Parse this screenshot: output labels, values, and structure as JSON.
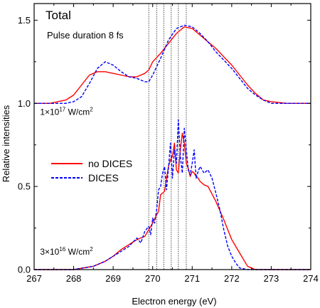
{
  "chart_data": {
    "type": "line",
    "panel_title": "Total",
    "subtitle": "Pulse duration 8 fs",
    "xlabel": "Electron energy (eV)",
    "ylabel": "Relative intensities",
    "xlim": [
      267,
      274
    ],
    "ylim": [
      0,
      1.6
    ],
    "x_ticks": [
      267,
      268,
      269,
      270,
      271,
      272,
      273,
      274
    ],
    "y_ticks": [
      0.0,
      0.5,
      1.0,
      1.5
    ],
    "x_tick_labels": [
      "267",
      "268",
      "269",
      "270",
      "271",
      "272",
      "273",
      "274"
    ],
    "y_tick_labels": [
      "0.0",
      "0.5",
      "1.0",
      "1.5"
    ],
    "grid": false,
    "legend_position": "left-middle",
    "intensity_labels": [
      {
        "id": "upper",
        "coef": "1×10",
        "exp": "17",
        "unit": " W/cm",
        "unit_exp": "2",
        "x": 267.15,
        "y": 0.93
      },
      {
        "id": "lower",
        "coef": "3×10",
        "exp": "16",
        "unit": " W/cm",
        "unit_exp": "2",
        "x": 267.15,
        "y": 0.09
      }
    ],
    "vlines": [
      269.9,
      270.1,
      270.28,
      270.47,
      270.65,
      270.85
    ],
    "series": [
      {
        "name": "no DICES",
        "color": "#ff0000",
        "dash": "solid",
        "x": [
          267.0,
          267.4,
          267.8,
          268.0,
          268.2,
          268.4,
          268.6,
          268.8,
          269.0,
          269.2,
          269.4,
          269.6,
          269.8,
          269.9,
          270.0,
          270.2,
          270.4,
          270.6,
          270.8,
          271.0,
          271.2,
          271.4,
          271.6,
          271.8,
          272.0,
          272.2,
          272.4,
          272.6,
          272.8,
          273.0,
          273.4,
          274.0
        ],
        "y": [
          1.0,
          1.0,
          1.02,
          1.05,
          1.11,
          1.17,
          1.19,
          1.19,
          1.18,
          1.17,
          1.16,
          1.16,
          1.18,
          1.2,
          1.25,
          1.3,
          1.36,
          1.42,
          1.46,
          1.45,
          1.41,
          1.37,
          1.33,
          1.28,
          1.23,
          1.17,
          1.11,
          1.06,
          1.02,
          1.01,
          1.0,
          1.0
        ]
      },
      {
        "name": "DICES",
        "color": "#0000ff",
        "dash": "4,2",
        "x": [
          267.0,
          267.8,
          268.0,
          268.2,
          268.4,
          268.6,
          268.8,
          269.0,
          269.2,
          269.4,
          269.6,
          269.8,
          269.9,
          270.0,
          270.2,
          270.4,
          270.6,
          270.8,
          271.0,
          271.2,
          271.4,
          271.6,
          271.8,
          272.0,
          272.2,
          272.4,
          272.6,
          272.8,
          273.0,
          273.4,
          274.0
        ],
        "y": [
          1.0,
          1.0,
          1.01,
          1.04,
          1.12,
          1.21,
          1.25,
          1.23,
          1.19,
          1.16,
          1.15,
          1.13,
          1.13,
          1.17,
          1.27,
          1.38,
          1.45,
          1.47,
          1.46,
          1.42,
          1.37,
          1.31,
          1.26,
          1.21,
          1.15,
          1.09,
          1.05,
          1.02,
          1.0,
          1.0,
          1.0
        ]
      },
      {
        "name": "no DICES (3×10^16)",
        "color": "#ff0000",
        "dash": "solid",
        "x": [
          267.0,
          268.0,
          268.5,
          268.8,
          269.0,
          269.2,
          269.4,
          269.6,
          269.8,
          269.9,
          270.0,
          270.1,
          270.15,
          270.2,
          270.3,
          270.35,
          270.4,
          270.45,
          270.5,
          270.55,
          270.6,
          270.65,
          270.7,
          270.75,
          270.8,
          270.85,
          270.9,
          270.95,
          271.0,
          271.05,
          271.1,
          271.15,
          271.2,
          271.3,
          271.4,
          271.6,
          271.8,
          272.0,
          272.2,
          272.4,
          272.6,
          273.0,
          274.0
        ],
        "y": [
          0.0,
          0.0,
          0.02,
          0.05,
          0.08,
          0.12,
          0.15,
          0.18,
          0.2,
          0.24,
          0.28,
          0.33,
          0.35,
          0.45,
          0.47,
          0.55,
          0.62,
          0.66,
          0.68,
          0.76,
          0.6,
          0.58,
          0.72,
          0.82,
          0.76,
          0.64,
          0.61,
          0.56,
          0.59,
          0.58,
          0.56,
          0.55,
          0.53,
          0.51,
          0.5,
          0.41,
          0.3,
          0.18,
          0.1,
          0.02,
          0.0,
          0.0,
          0.0
        ]
      },
      {
        "name": "DICES (3×10^16)",
        "color": "#0000ff",
        "dash": "4,2",
        "x": [
          267.0,
          268.0,
          268.5,
          268.8,
          269.0,
          269.2,
          269.4,
          269.6,
          269.7,
          269.8,
          269.9,
          269.95,
          270.0,
          270.05,
          270.1,
          270.15,
          270.2,
          270.25,
          270.3,
          270.35,
          270.4,
          270.45,
          270.5,
          270.55,
          270.6,
          270.65,
          270.7,
          270.75,
          270.8,
          270.85,
          270.9,
          270.95,
          271.0,
          271.05,
          271.1,
          271.15,
          271.2,
          271.3,
          271.4,
          271.5,
          271.6,
          271.7,
          271.8,
          271.9,
          272.0,
          272.1,
          272.2,
          272.4,
          273.0,
          274.0
        ],
        "y": [
          0.0,
          0.0,
          0.02,
          0.05,
          0.08,
          0.11,
          0.14,
          0.19,
          0.16,
          0.23,
          0.26,
          0.21,
          0.31,
          0.28,
          0.36,
          0.48,
          0.5,
          0.58,
          0.62,
          0.48,
          0.61,
          0.76,
          0.55,
          0.72,
          0.64,
          0.9,
          0.68,
          0.58,
          0.85,
          0.72,
          0.6,
          0.57,
          0.64,
          0.72,
          0.55,
          0.59,
          0.62,
          0.58,
          0.6,
          0.55,
          0.46,
          0.36,
          0.24,
          0.14,
          0.08,
          0.04,
          0.01,
          0.0,
          0.0,
          0.0
        ]
      }
    ],
    "legend": [
      {
        "label": "no DICES",
        "color": "#ff0000",
        "dash": "solid"
      },
      {
        "label": "DICES",
        "color": "#0000ff",
        "dash": "4,2"
      }
    ]
  }
}
